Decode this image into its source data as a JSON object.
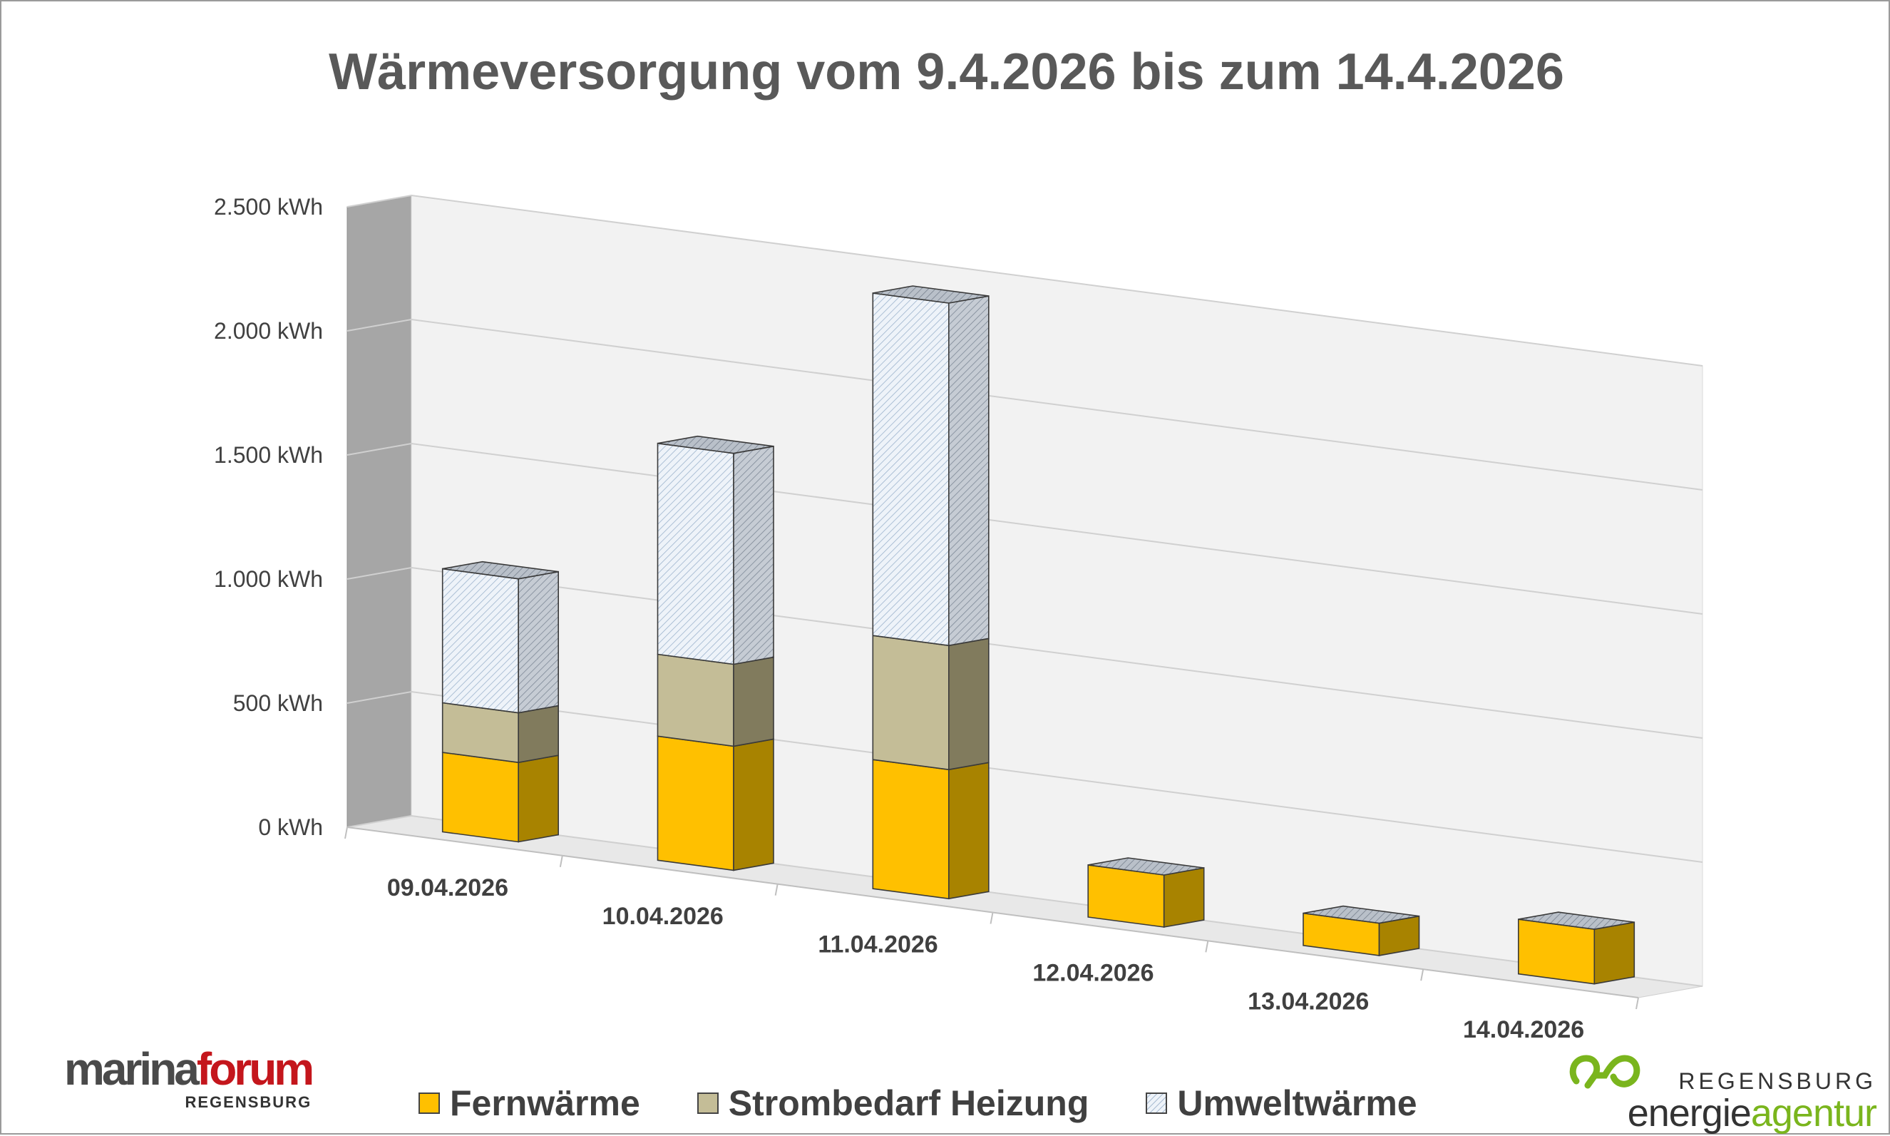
{
  "chart_data": {
    "type": "bar",
    "stacked": true,
    "three_d": true,
    "title": "Wärmeversorgung vom 9.4.2026 bis zum 14.4.2026",
    "categories": [
      "09.04.2026",
      "10.04.2026",
      "11.04.2026",
      "12.04.2026",
      "13.04.2026",
      "14.04.2026"
    ],
    "series": [
      {
        "name": "Fernwärme",
        "values": [
          320,
          500,
          520,
          210,
          130,
          220
        ],
        "color": "#ffc000",
        "side_color": "#a88300",
        "pattern": "solid"
      },
      {
        "name": "Strombedarf Heizung",
        "values": [
          200,
          330,
          500,
          0,
          0,
          0
        ],
        "color": "#c4bd97",
        "side_color": "#817b5d",
        "pattern": "solid"
      },
      {
        "name": "Umweltwärme",
        "values": [
          540,
          850,
          1380,
          0,
          0,
          0
        ],
        "color": "#dde8f3",
        "side_color": "#b5bcc6",
        "pattern": "hatched"
      }
    ],
    "y_ticks": [
      "0 kWh",
      "500 kWh",
      "1.000 kWh",
      "1.500 kWh",
      "2.000 kWh",
      "2.500 kWh"
    ],
    "ylim": [
      0,
      2500
    ],
    "ylabel": "",
    "xlabel": "",
    "grid": true,
    "legend_position": "bottom"
  },
  "logos": {
    "left": {
      "part1": "marina",
      "part2": "forum",
      "sub": "REGENSBURG"
    },
    "right": {
      "sub": "REGENSBURG",
      "part1": "energie",
      "part2": "agentur"
    }
  }
}
